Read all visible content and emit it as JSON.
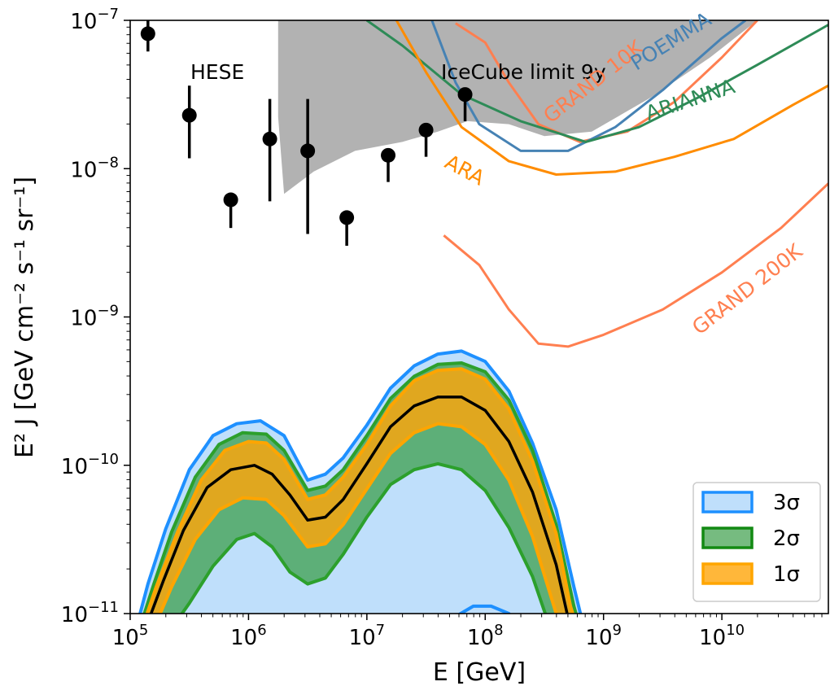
{
  "chart_data": {
    "type": "line",
    "xlabel": "E [GeV]",
    "ylabel": "E² J [GeV cm⁻² s⁻¹ sr⁻¹]",
    "xscale": "log",
    "yscale": "log",
    "xlim_log10": [
      5,
      10.9
    ],
    "ylim_log10": [
      -11,
      -7
    ],
    "x_ticks": [
      {
        "exp": 5,
        "base": "10",
        "sup": "5"
      },
      {
        "exp": 6,
        "base": "10",
        "sup": "6"
      },
      {
        "exp": 7,
        "base": "10",
        "sup": "7"
      },
      {
        "exp": 8,
        "base": "10",
        "sup": "8"
      },
      {
        "exp": 9,
        "base": "10",
        "sup": "9"
      },
      {
        "exp": 10,
        "base": "10",
        "sup": "10"
      }
    ],
    "y_ticks": [
      {
        "exp": -11,
        "base": "10",
        "sup": "−11"
      },
      {
        "exp": -10,
        "base": "10",
        "sup": "−10"
      },
      {
        "exp": -9,
        "base": "10",
        "sup": "−9"
      },
      {
        "exp": -8,
        "base": "10",
        "sup": "−8"
      },
      {
        "exp": -7,
        "base": "10",
        "sup": "−7"
      }
    ],
    "hese": {
      "label": "HESE",
      "color": "#000000",
      "points": [
        {
          "logE": 5.15,
          "logY": -7.09,
          "lo": -7.21,
          "hi": -6.9
        },
        {
          "logE": 5.5,
          "logY": -7.64,
          "lo": -7.93,
          "hi": -7.44
        },
        {
          "logE": 5.85,
          "logY": -8.21,
          "lo": -8.4,
          "hi": null
        },
        {
          "logE": 6.18,
          "logY": -7.8,
          "lo": -8.22,
          "hi": -7.53
        },
        {
          "logE": 6.5,
          "logY": -7.88,
          "lo": -8.44,
          "hi": -7.53
        },
        {
          "logE": 6.83,
          "logY": -8.33,
          "lo": -8.52,
          "hi": null
        },
        {
          "logE": 7.18,
          "logY": -7.91,
          "lo": -8.09,
          "hi": null
        },
        {
          "logE": 7.5,
          "logY": -7.74,
          "lo": -7.92,
          "hi": null
        },
        {
          "logE": 7.83,
          "logY": -7.5,
          "lo": -7.68,
          "hi": null
        }
      ]
    },
    "icecube_limit": {
      "label": "IceCube limit 9y",
      "color": "#b2b2b2",
      "lower": [
        [
          6.25,
          -7.65
        ],
        [
          6.3,
          -8.17
        ],
        [
          6.55,
          -8.02
        ],
        [
          6.9,
          -7.88
        ],
        [
          7.3,
          -7.82
        ],
        [
          7.6,
          -7.75
        ],
        [
          7.85,
          -7.68
        ],
        [
          8.2,
          -7.7
        ],
        [
          8.5,
          -7.78
        ],
        [
          8.9,
          -7.75
        ],
        [
          9.4,
          -7.52
        ],
        [
          9.9,
          -7.25
        ],
        [
          10.3,
          -7.0
        ]
      ],
      "top": -7
    },
    "experiments": [
      {
        "name": "GRAND 10K",
        "color": "#ff7f50",
        "points": [
          [
            7.75,
            -7.02
          ],
          [
            8.0,
            -7.15
          ],
          [
            8.2,
            -7.42
          ],
          [
            8.45,
            -7.7
          ],
          [
            8.8,
            -7.82
          ],
          [
            9.2,
            -7.75
          ],
          [
            9.6,
            -7.55
          ],
          [
            10.0,
            -7.25
          ],
          [
            10.3,
            -7.0
          ]
        ],
        "label_pos": [
          8.95,
          -7.45
        ],
        "label_rot": -38
      },
      {
        "name": "POEMMA",
        "color": "#4682b4",
        "points": [
          [
            7.55,
            -7.0
          ],
          [
            7.75,
            -7.42
          ],
          [
            7.95,
            -7.7
          ],
          [
            8.3,
            -7.88
          ],
          [
            8.7,
            -7.88
          ],
          [
            9.1,
            -7.72
          ],
          [
            9.5,
            -7.47
          ],
          [
            10.0,
            -7.12
          ],
          [
            10.2,
            -7.0
          ]
        ],
        "label_pos": [
          9.6,
          -7.18
        ],
        "label_rot": -32
      },
      {
        "name": "ARIANNA",
        "color": "#2e8b57",
        "points": [
          [
            7.0,
            -7.0
          ],
          [
            7.3,
            -7.17
          ],
          [
            7.8,
            -7.5
          ],
          [
            8.3,
            -7.68
          ],
          [
            8.85,
            -7.82
          ],
          [
            9.3,
            -7.72
          ],
          [
            9.8,
            -7.52
          ],
          [
            10.3,
            -7.3
          ],
          [
            10.9,
            -7.03
          ]
        ],
        "label_pos": [
          9.75,
          -7.58
        ],
        "label_rot": -18
      },
      {
        "name": "ARA",
        "color": "#ff8c00",
        "points": [
          [
            7.25,
            -7.0
          ],
          [
            7.5,
            -7.35
          ],
          [
            7.8,
            -7.72
          ],
          [
            8.2,
            -7.95
          ],
          [
            8.6,
            -8.04
          ],
          [
            9.1,
            -8.02
          ],
          [
            9.6,
            -7.92
          ],
          [
            10.1,
            -7.8
          ],
          [
            10.6,
            -7.57
          ],
          [
            10.9,
            -7.44
          ]
        ],
        "label_pos": [
          7.8,
          -8.05
        ],
        "label_rot": 28
      },
      {
        "name": "GRAND 200K",
        "color": "#ff7f50",
        "points": [
          [
            7.65,
            -8.45
          ],
          [
            7.95,
            -8.65
          ],
          [
            8.2,
            -8.95
          ],
          [
            8.45,
            -9.18
          ],
          [
            8.7,
            -9.2
          ],
          [
            9.0,
            -9.12
          ],
          [
            9.5,
            -8.95
          ],
          [
            10.0,
            -8.7
          ],
          [
            10.5,
            -8.4
          ],
          [
            10.9,
            -8.1
          ]
        ],
        "label_pos": [
          10.25,
          -8.85
        ],
        "label_rot": -38
      }
    ],
    "bands": [
      {
        "name": "3σ",
        "fill": "#bfdffb",
        "stroke": "#1e90ff",
        "upper": [
          [
            5.05,
            -11.1
          ],
          [
            5.15,
            -10.8
          ],
          [
            5.3,
            -10.43
          ],
          [
            5.5,
            -10.03
          ],
          [
            5.7,
            -9.8
          ],
          [
            5.9,
            -9.72
          ],
          [
            6.1,
            -9.7
          ],
          [
            6.3,
            -9.8
          ],
          [
            6.5,
            -10.1
          ],
          [
            6.65,
            -10.06
          ],
          [
            6.8,
            -9.95
          ],
          [
            7.0,
            -9.73
          ],
          [
            7.2,
            -9.48
          ],
          [
            7.4,
            -9.33
          ],
          [
            7.6,
            -9.25
          ],
          [
            7.8,
            -9.23
          ],
          [
            8.0,
            -9.3
          ],
          [
            8.2,
            -9.5
          ],
          [
            8.4,
            -9.85
          ],
          [
            8.6,
            -10.3
          ],
          [
            8.75,
            -10.82
          ],
          [
            8.85,
            -11.15
          ]
        ],
        "lower": [
          [
            7.6,
            -11.1
          ],
          [
            7.75,
            -11.02
          ],
          [
            7.9,
            -10.95
          ],
          [
            8.05,
            -10.95
          ],
          [
            8.2,
            -11.0
          ],
          [
            8.3,
            -11.1
          ]
        ]
      },
      {
        "name": "2σ",
        "fill": "#5daf78",
        "stroke": "#2ca02c",
        "upper": [
          [
            5.08,
            -11.1
          ],
          [
            5.2,
            -10.8
          ],
          [
            5.35,
            -10.45
          ],
          [
            5.55,
            -10.08
          ],
          [
            5.75,
            -9.86
          ],
          [
            5.95,
            -9.78
          ],
          [
            6.15,
            -9.79
          ],
          [
            6.3,
            -9.9
          ],
          [
            6.5,
            -10.17
          ],
          [
            6.65,
            -10.14
          ],
          [
            6.8,
            -10.03
          ],
          [
            7.0,
            -9.8
          ],
          [
            7.2,
            -9.55
          ],
          [
            7.4,
            -9.4
          ],
          [
            7.6,
            -9.32
          ],
          [
            7.8,
            -9.31
          ],
          [
            8.0,
            -9.37
          ],
          [
            8.2,
            -9.56
          ],
          [
            8.4,
            -9.9
          ],
          [
            8.6,
            -10.4
          ],
          [
            8.75,
            -10.95
          ],
          [
            8.82,
            -11.15
          ]
        ],
        "lower": [
          [
            5.35,
            -11.1
          ],
          [
            5.5,
            -10.93
          ],
          [
            5.7,
            -10.68
          ],
          [
            5.9,
            -10.5
          ],
          [
            6.05,
            -10.46
          ],
          [
            6.2,
            -10.55
          ],
          [
            6.35,
            -10.72
          ],
          [
            6.5,
            -10.8
          ],
          [
            6.65,
            -10.76
          ],
          [
            6.8,
            -10.6
          ],
          [
            7.0,
            -10.35
          ],
          [
            7.2,
            -10.13
          ],
          [
            7.4,
            -10.03
          ],
          [
            7.6,
            -9.99
          ],
          [
            7.8,
            -10.03
          ],
          [
            8.0,
            -10.17
          ],
          [
            8.2,
            -10.42
          ],
          [
            8.4,
            -10.75
          ],
          [
            8.55,
            -11.1
          ]
        ]
      },
      {
        "name": "1σ",
        "fill": "#e0a71f",
        "stroke": "#ffa500",
        "upper": [
          [
            5.1,
            -11.1
          ],
          [
            5.22,
            -10.82
          ],
          [
            5.4,
            -10.45
          ],
          [
            5.6,
            -10.1
          ],
          [
            5.8,
            -9.9
          ],
          [
            6.0,
            -9.84
          ],
          [
            6.15,
            -9.85
          ],
          [
            6.3,
            -9.96
          ],
          [
            6.5,
            -10.23
          ],
          [
            6.65,
            -10.2
          ],
          [
            6.8,
            -10.08
          ],
          [
            7.0,
            -9.86
          ],
          [
            7.2,
            -9.6
          ],
          [
            7.4,
            -9.43
          ],
          [
            7.6,
            -9.36
          ],
          [
            7.8,
            -9.35
          ],
          [
            8.0,
            -9.42
          ],
          [
            8.2,
            -9.62
          ],
          [
            8.4,
            -9.97
          ],
          [
            8.6,
            -10.46
          ],
          [
            8.72,
            -10.95
          ],
          [
            8.8,
            -11.15
          ]
        ],
        "lower": [
          [
            5.2,
            -11.1
          ],
          [
            5.35,
            -10.82
          ],
          [
            5.55,
            -10.5
          ],
          [
            5.75,
            -10.3
          ],
          [
            5.95,
            -10.22
          ],
          [
            6.15,
            -10.23
          ],
          [
            6.3,
            -10.34
          ],
          [
            6.5,
            -10.55
          ],
          [
            6.65,
            -10.53
          ],
          [
            6.8,
            -10.4
          ],
          [
            7.0,
            -10.16
          ],
          [
            7.2,
            -9.92
          ],
          [
            7.4,
            -9.78
          ],
          [
            7.6,
            -9.72
          ],
          [
            7.8,
            -9.74
          ],
          [
            8.0,
            -9.86
          ],
          [
            8.2,
            -10.1
          ],
          [
            8.4,
            -10.48
          ],
          [
            8.6,
            -11.0
          ],
          [
            8.65,
            -11.1
          ]
        ]
      }
    ],
    "median": {
      "color": "#000000",
      "points": [
        [
          5.13,
          -11.1
        ],
        [
          5.28,
          -10.78
        ],
        [
          5.45,
          -10.44
        ],
        [
          5.65,
          -10.15
        ],
        [
          5.85,
          -10.03
        ],
        [
          6.05,
          -10.0
        ],
        [
          6.2,
          -10.06
        ],
        [
          6.35,
          -10.2
        ],
        [
          6.5,
          -10.37
        ],
        [
          6.65,
          -10.35
        ],
        [
          6.8,
          -10.23
        ],
        [
          7.0,
          -9.99
        ],
        [
          7.2,
          -9.74
        ],
        [
          7.4,
          -9.6
        ],
        [
          7.6,
          -9.54
        ],
        [
          7.8,
          -9.54
        ],
        [
          8.0,
          -9.63
        ],
        [
          8.2,
          -9.84
        ],
        [
          8.4,
          -10.18
        ],
        [
          8.6,
          -10.67
        ],
        [
          8.72,
          -11.1
        ]
      ]
    },
    "legend": {
      "position": "lower-right",
      "entries": [
        {
          "label": "3σ",
          "fill": "#bfdffb",
          "stroke": "#1e90ff"
        },
        {
          "label": "2σ",
          "fill": "#76bb80",
          "stroke": "#138a13"
        },
        {
          "label": "1σ",
          "fill": "#ffb73a",
          "stroke": "#ffa500"
        }
      ]
    }
  }
}
